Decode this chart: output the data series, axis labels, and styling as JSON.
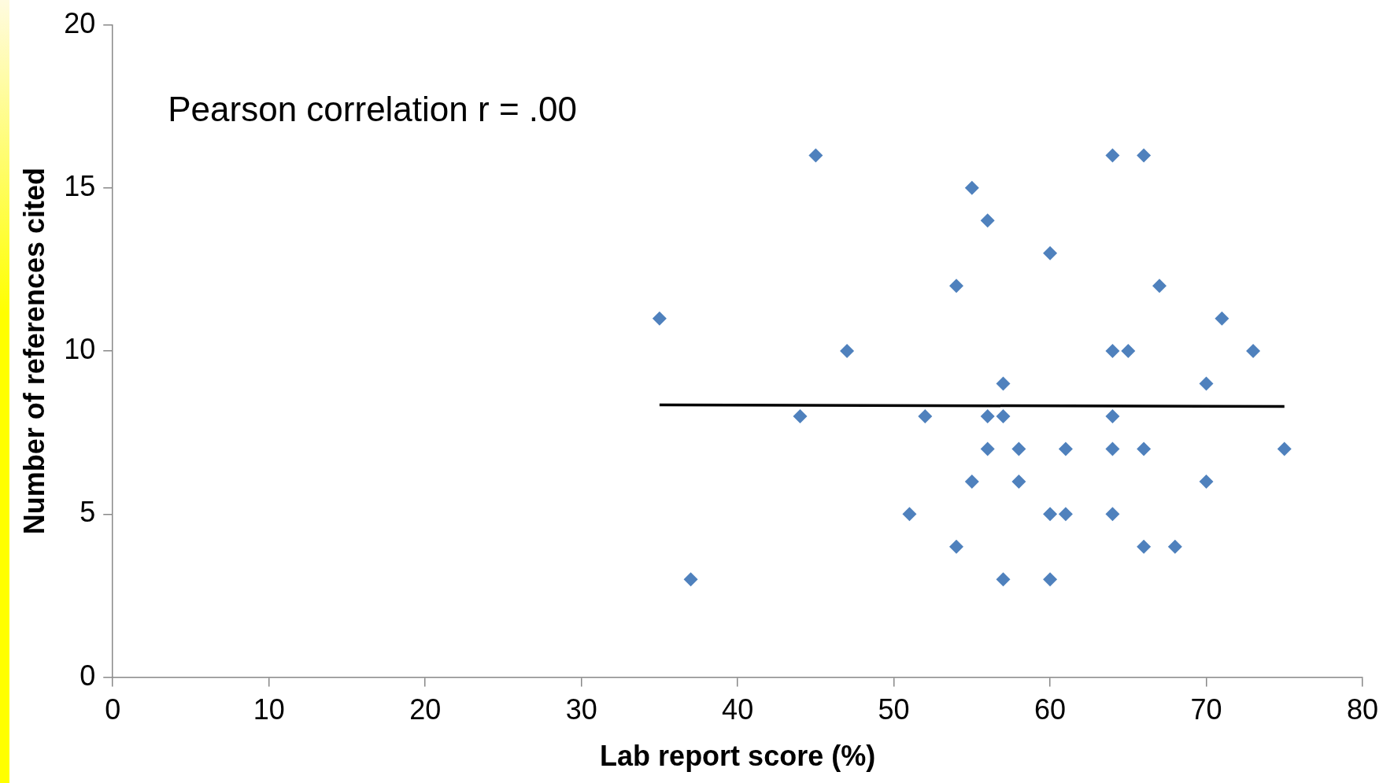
{
  "chart_data": {
    "type": "scatter",
    "xlabel": "Lab report score (%)",
    "ylabel": "Number of references cited",
    "annotations": [
      "Pearson correlation r = .00"
    ],
    "marker": "diamond",
    "grid": false,
    "xlim": [
      0,
      80
    ],
    "xticks": [
      0,
      10,
      20,
      30,
      40,
      50,
      60,
      70,
      80
    ],
    "ylim": [
      0,
      20
    ],
    "yticks": [
      0,
      5,
      10,
      15,
      20
    ],
    "series": [
      {
        "color": "#4f81bd",
        "x": [
          35,
          37,
          44,
          45,
          47,
          51,
          52,
          54,
          54,
          55,
          55,
          56,
          56,
          56,
          57,
          57,
          57,
          58,
          58,
          60,
          60,
          60,
          61,
          61,
          64,
          64,
          64,
          64,
          64,
          65,
          66,
          66,
          66,
          67,
          68,
          70,
          70,
          71,
          73,
          75
        ],
        "values": [
          11,
          3,
          8,
          16,
          10,
          5,
          8,
          12,
          4,
          15,
          6,
          14,
          8,
          7,
          9,
          8,
          3,
          7,
          6,
          13,
          5,
          3,
          7,
          5,
          16,
          10,
          8,
          7,
          5,
          10,
          16,
          7,
          4,
          12,
          4,
          9,
          6,
          11,
          10,
          7
        ]
      },
      {
        "type": "line",
        "color": "#000000",
        "marker": "none",
        "x": [
          35,
          75
        ],
        "values": [
          8.35,
          8.3
        ]
      }
    ]
  }
}
